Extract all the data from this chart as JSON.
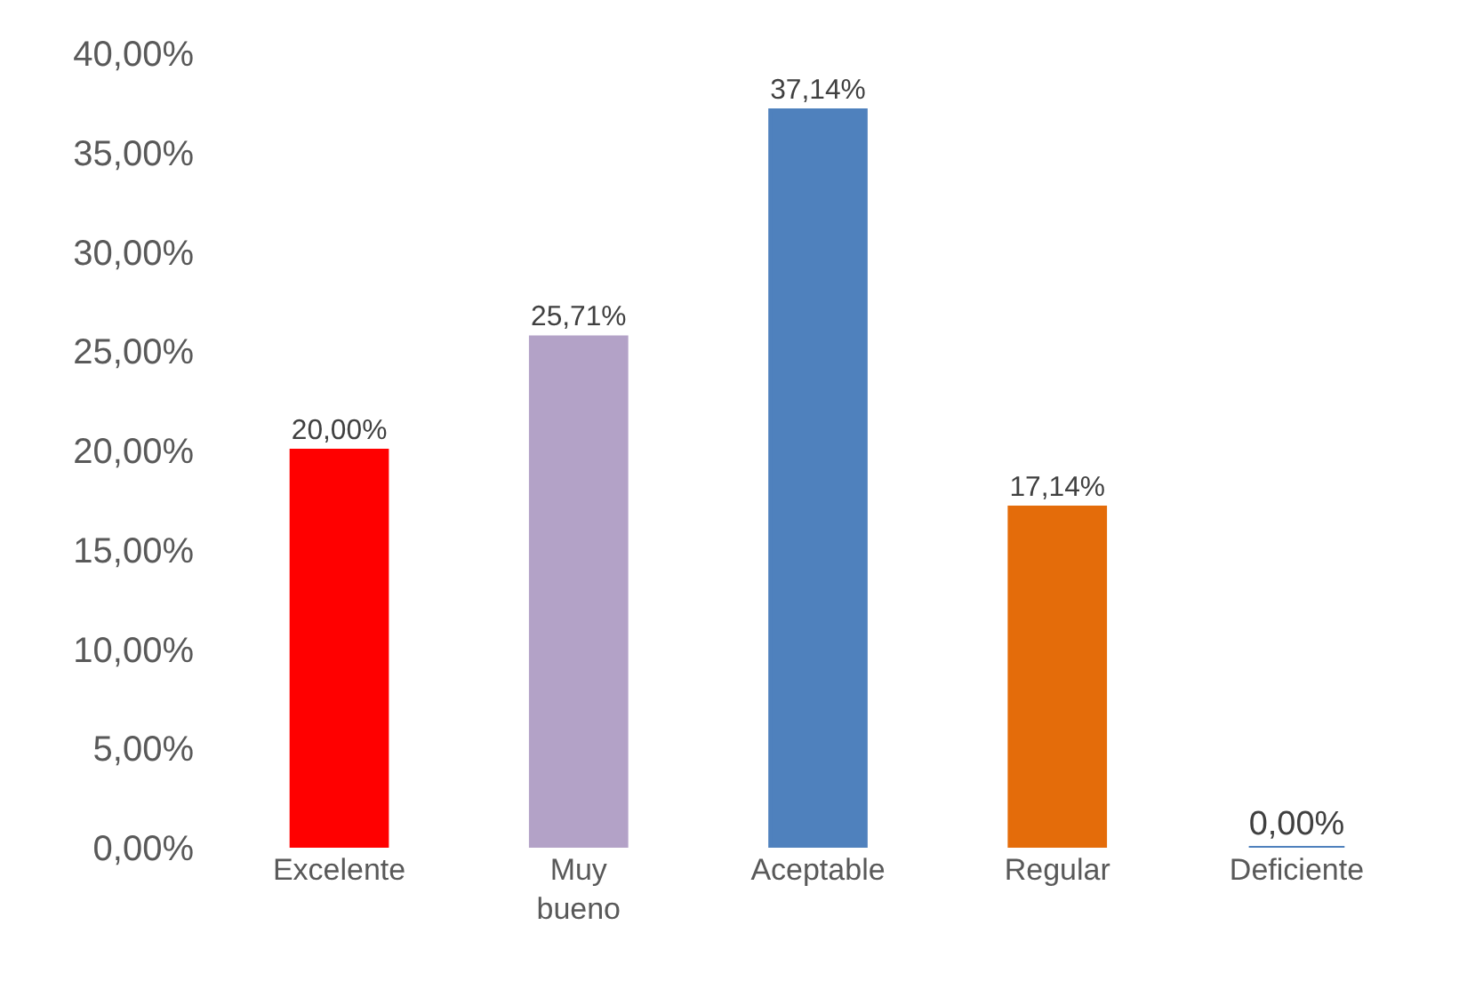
{
  "chart_data": {
    "type": "bar",
    "categories": [
      "Excelente",
      "Muy bueno",
      "Aceptable",
      "Regular",
      "Deficiente"
    ],
    "values": [
      20.0,
      25.71,
      37.14,
      17.14,
      0.0
    ],
    "value_labels": [
      "20,00%",
      "25,71%",
      "37,14%",
      "17,14%",
      "0,00%"
    ],
    "colors": [
      "#ff0000",
      "#b3a2c7",
      "#4f81bd",
      "#e46c0a",
      "#4f81bd"
    ],
    "ylim": [
      0,
      40
    ],
    "yticks": [
      {
        "value": 0,
        "label": "0,00%"
      },
      {
        "value": 5,
        "label": "5,00%"
      },
      {
        "value": 10,
        "label": "10,00%"
      },
      {
        "value": 15,
        "label": "15,00%"
      },
      {
        "value": 20,
        "label": "20,00%"
      },
      {
        "value": 25,
        "label": "25,00%"
      },
      {
        "value": 30,
        "label": "30,00%"
      },
      {
        "value": 35,
        "label": "35,00%"
      },
      {
        "value": 40,
        "label": "40,00%"
      }
    ],
    "legend": false
  }
}
